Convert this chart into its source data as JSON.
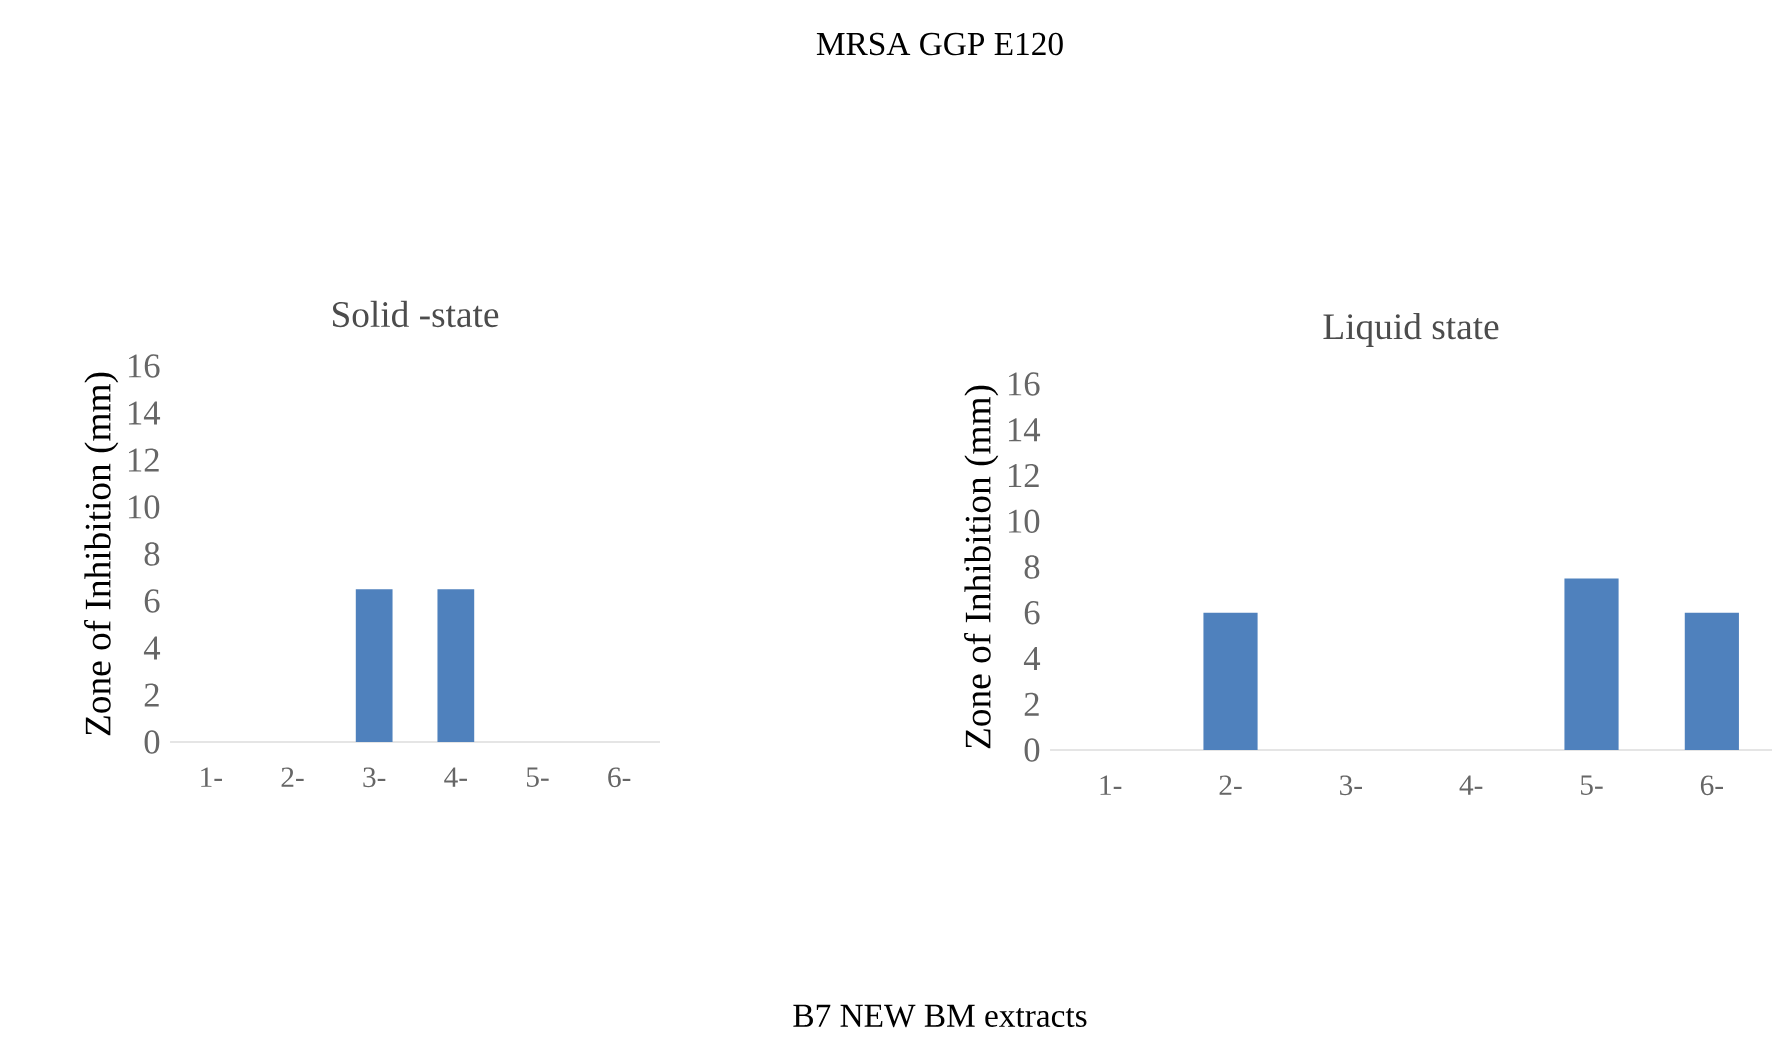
{
  "chart_data": [
    {
      "type": "bar",
      "title": "Solid -state",
      "ylabel": "Zone of Inhibition (mm)",
      "categories": [
        "1-",
        "2-",
        "3-",
        "4-",
        "5-",
        "6-"
      ],
      "values": [
        0,
        0,
        6.5,
        6.5,
        0,
        0
      ],
      "color": "#4f81bd",
      "ylim": [
        0,
        16
      ],
      "yticks": [
        0,
        2,
        4,
        6,
        8,
        10,
        12,
        14,
        16
      ],
      "annotations": [
        "MRSA GGP E120",
        "B7 NEW BM extracts"
      ]
    },
    {
      "type": "bar",
      "title": "Liquid state",
      "ylabel": "Zone of Inhibition (mm)",
      "categories": [
        "1-",
        "2-",
        "3-",
        "4-",
        "5-",
        "6-"
      ],
      "values": [
        0,
        6,
        0,
        0,
        7.5,
        6
      ],
      "color": "#4f81bd",
      "ylim": [
        0,
        16
      ],
      "yticks": [
        0,
        2,
        4,
        6,
        8,
        10,
        12,
        14,
        16
      ]
    }
  ]
}
